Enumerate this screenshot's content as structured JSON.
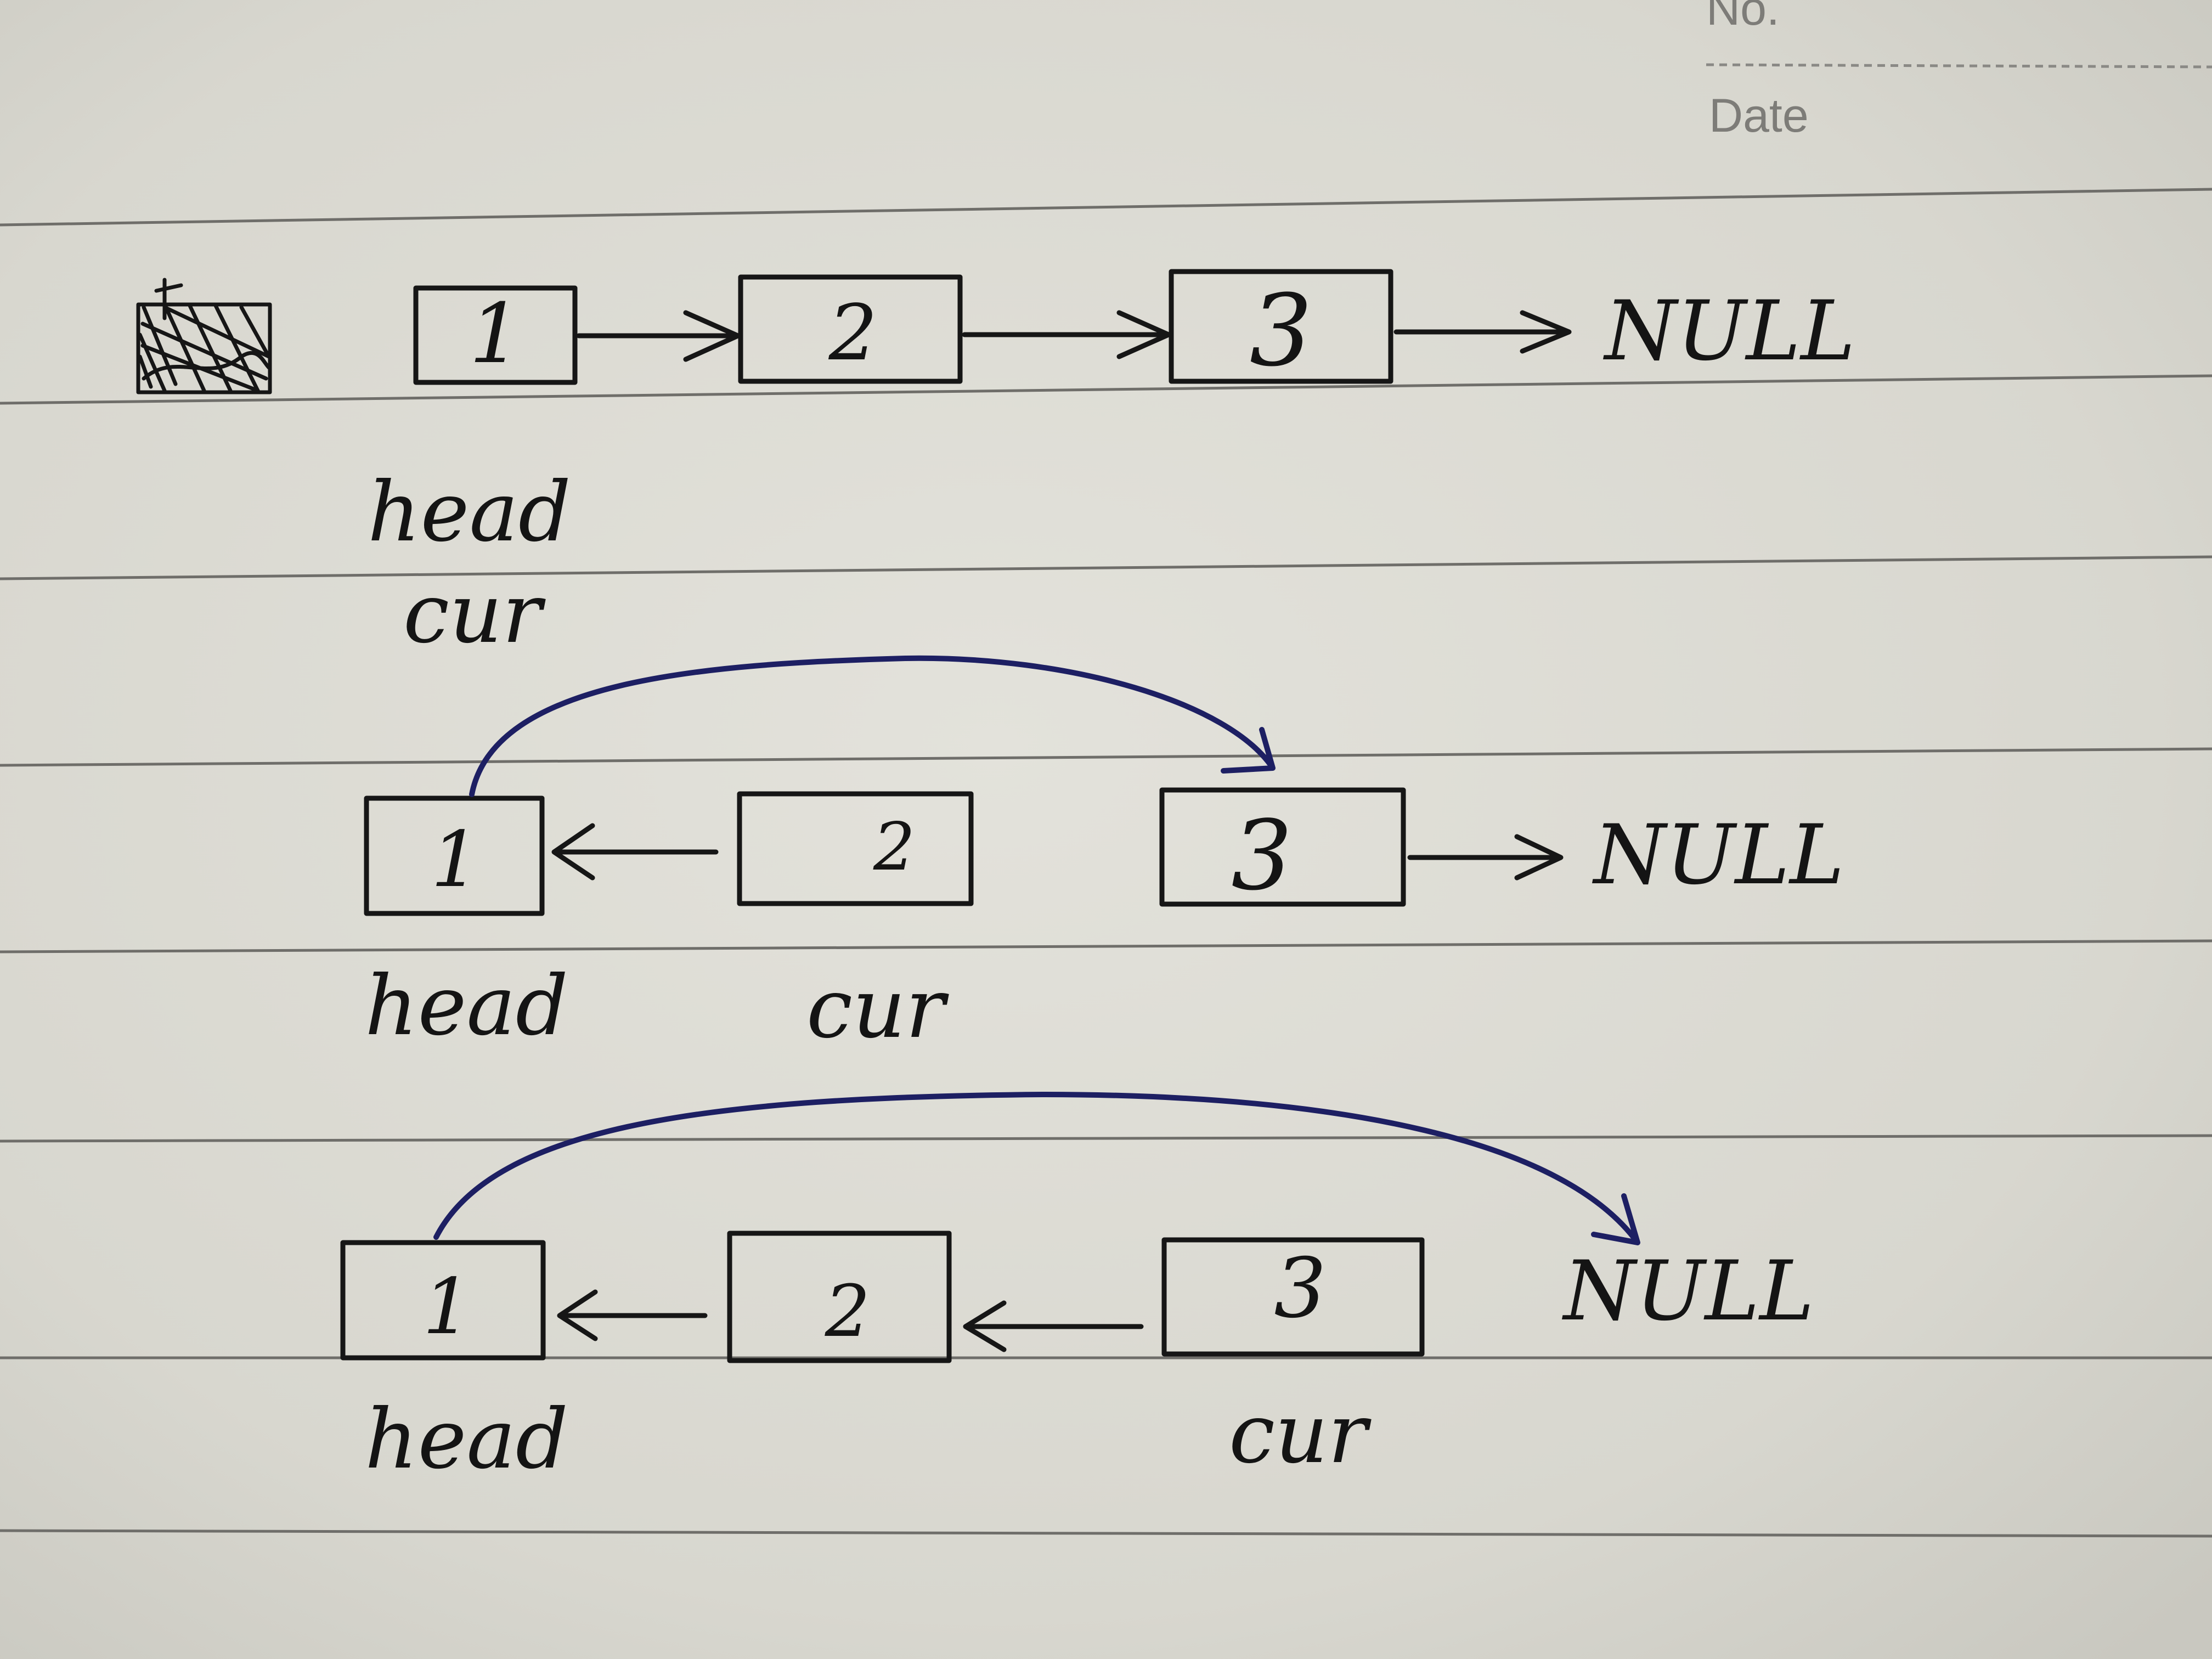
{
  "header": {
    "no_label": "No.",
    "date_label": "Date"
  },
  "colors": {
    "paper": "#dcdbd4",
    "rule": "#6f6e6a",
    "ink": "#161616",
    "blue_ink": "#1d1f63"
  },
  "rows": [
    {
      "nodes": [
        "1",
        "2",
        "3"
      ],
      "terminal": "NULL",
      "labels": [
        "head",
        "cur"
      ],
      "struck_out_word": true
    },
    {
      "nodes": [
        "1",
        "2",
        "3"
      ],
      "terminal": "NULL",
      "labels": [
        "head",
        "cur"
      ]
    },
    {
      "nodes": [
        "1",
        "2",
        "3"
      ],
      "terminal": "NULL",
      "labels": [
        "head",
        "cur"
      ]
    }
  ]
}
